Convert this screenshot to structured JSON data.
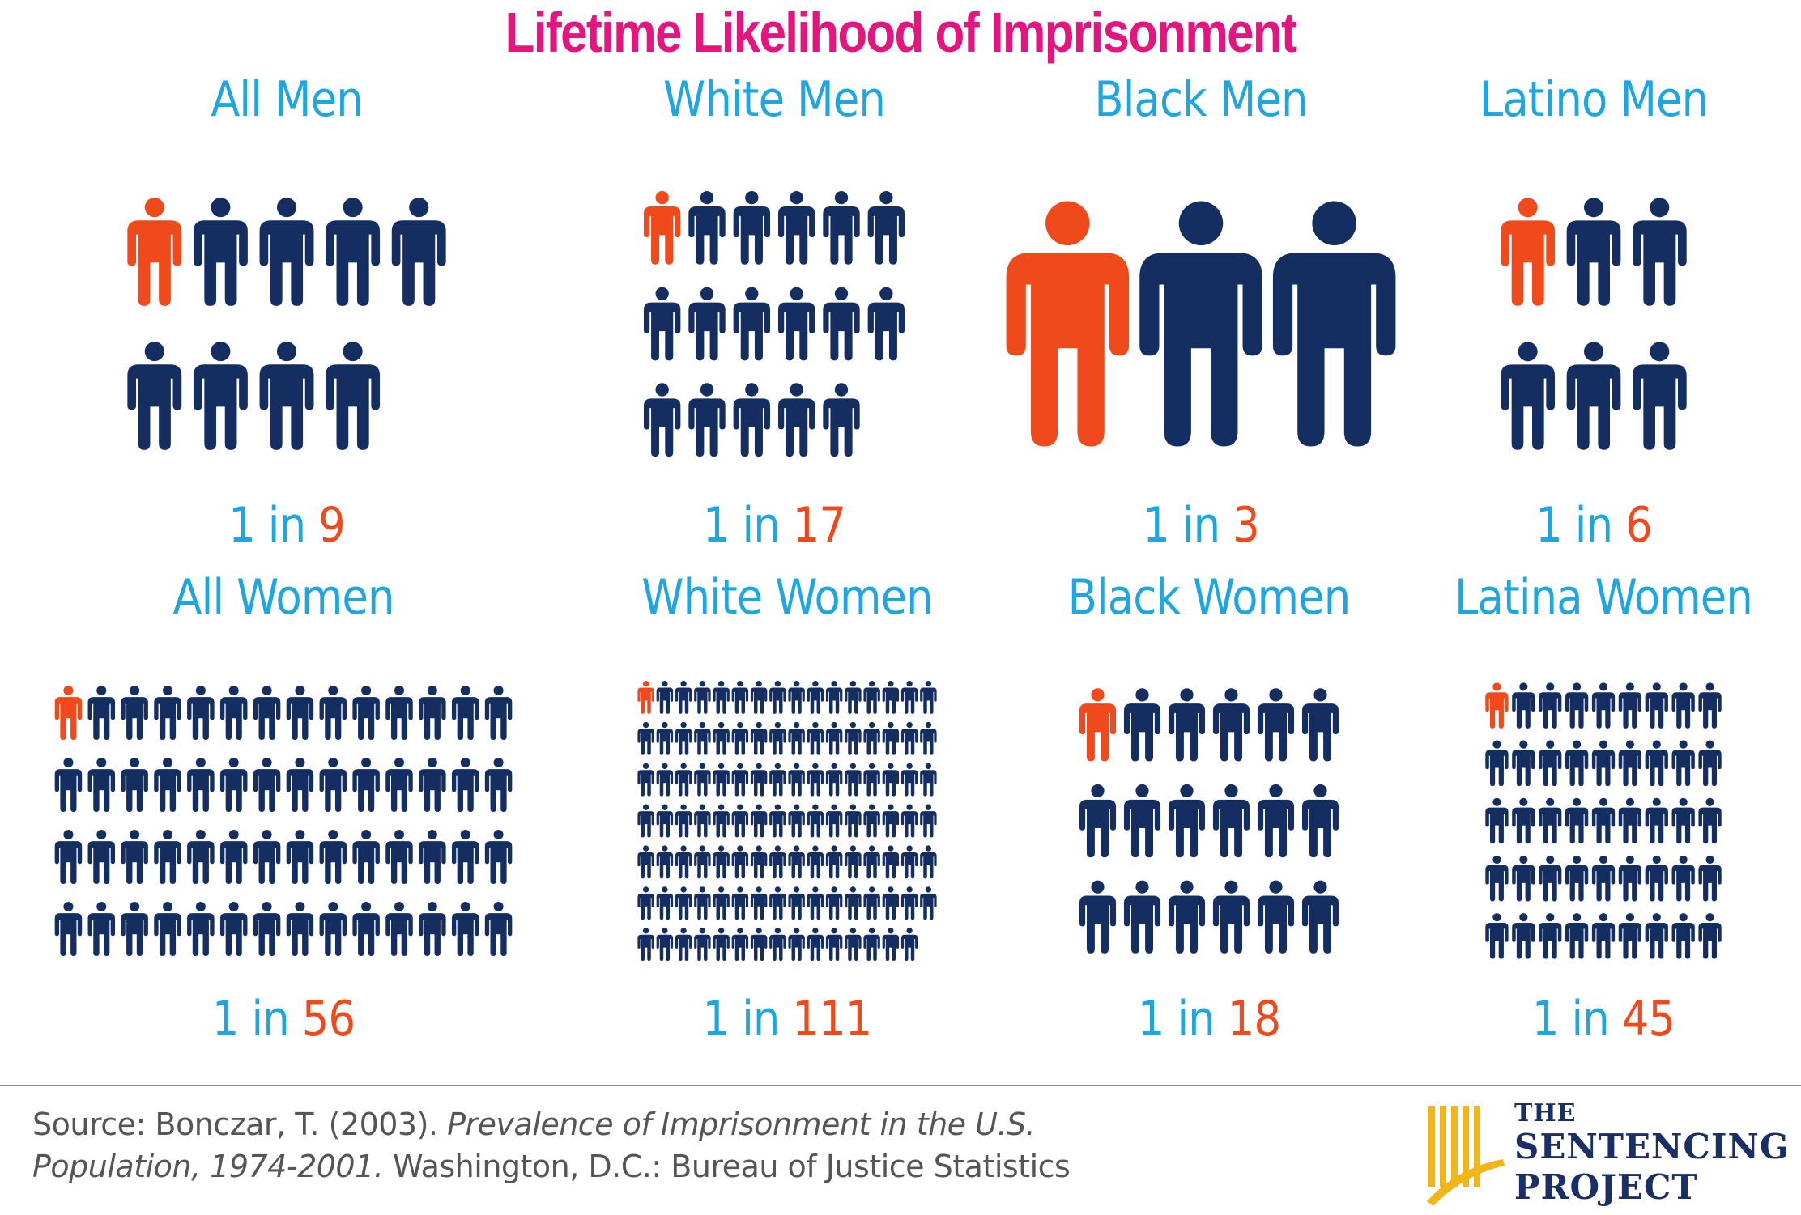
{
  "title": "Lifetime Likelihood of Imprisonment",
  "colors": {
    "title": "#e4157f",
    "label": "#1ea6e2",
    "highlight": "#f0491c",
    "figure": "#152e62",
    "logo_gold": "#f2b51a",
    "logo_text": "#1a2f66"
  },
  "chart_data": {
    "type": "pictograph",
    "icon": "person-icon",
    "panels": [
      {
        "label": "All Men",
        "ratio_prefix": "1 in ",
        "ratio_value": "9",
        "value": 9
      },
      {
        "label": "White Men",
        "ratio_prefix": "1 in ",
        "ratio_value": "17",
        "value": 17
      },
      {
        "label": "Black Men",
        "ratio_prefix": "1 in ",
        "ratio_value": "3",
        "value": 3
      },
      {
        "label": "Latino Men",
        "ratio_prefix": "1 in ",
        "ratio_value": "6",
        "value": 6
      },
      {
        "label": "All Women",
        "ratio_prefix": "1 in ",
        "ratio_value": "56",
        "value": 56
      },
      {
        "label": "White Women",
        "ratio_prefix": "1 in ",
        "ratio_value": "111",
        "value": 111
      },
      {
        "label": "Black Women",
        "ratio_prefix": "1 in ",
        "ratio_value": "18",
        "value": 18
      },
      {
        "label": "Latina Women",
        "ratio_prefix": "1 in ",
        "ratio_value": "45",
        "value": 45
      }
    ]
  },
  "source": {
    "prefix": "Source: Bonczar, T. (2003). ",
    "italic": "Prevalence of Imprisonment in the U.S. Population, 1974-2001.",
    "suffix": " Washington, D.C.: Bureau of Justice Statistics"
  },
  "logo": {
    "line1": "THE",
    "line2": "SENTENCING",
    "line3": "PROJECT",
    "icon": "pillars-logo-icon"
  }
}
